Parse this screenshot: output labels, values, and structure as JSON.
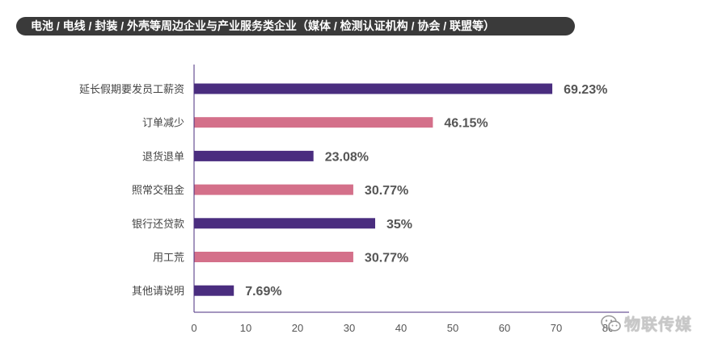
{
  "header": {
    "title": "电池 / 电线 / 封装 / 外壳等周边企业与产业服务类企业（媒体 / 检测认证机构 / 协会 / 联盟等）"
  },
  "chart_data": {
    "type": "bar",
    "orientation": "horizontal",
    "title": "电池 / 电线 / 封装 / 外壳等周边企业与产业服务类企业（媒体 / 检测认证机构 / 协会 / 联盟等）",
    "categories": [
      "延长假期要发员工薪资",
      "订单减少",
      "退货退单",
      "照常交租金",
      "银行还贷款",
      "用工荒",
      "其他请说明"
    ],
    "values": [
      69.23,
      46.15,
      23.08,
      30.77,
      35,
      30.77,
      7.69
    ],
    "data_labels": [
      "69.23%",
      "46.15%",
      "23.08%",
      "30.77%",
      "35%",
      "30.77%",
      "7.69%"
    ],
    "bar_colors": [
      "#4a2d7f",
      "#d4708a",
      "#4a2d7f",
      "#d4708a",
      "#4a2d7f",
      "#d4708a",
      "#4a2d7f"
    ],
    "xticks": [
      "0",
      "10",
      "20",
      "30",
      "40",
      "50",
      "60",
      "70",
      "80"
    ],
    "xlim": [
      0,
      80
    ],
    "xlabel": "",
    "ylabel": "",
    "grid": false,
    "legend": "none"
  },
  "watermark": {
    "text": "物联传媒",
    "icon": "wechat-icon"
  },
  "colors": {
    "axis": "#4a2d7f",
    "tick_text": "#555555",
    "category_text": "#444444",
    "label_text": "#555555"
  }
}
